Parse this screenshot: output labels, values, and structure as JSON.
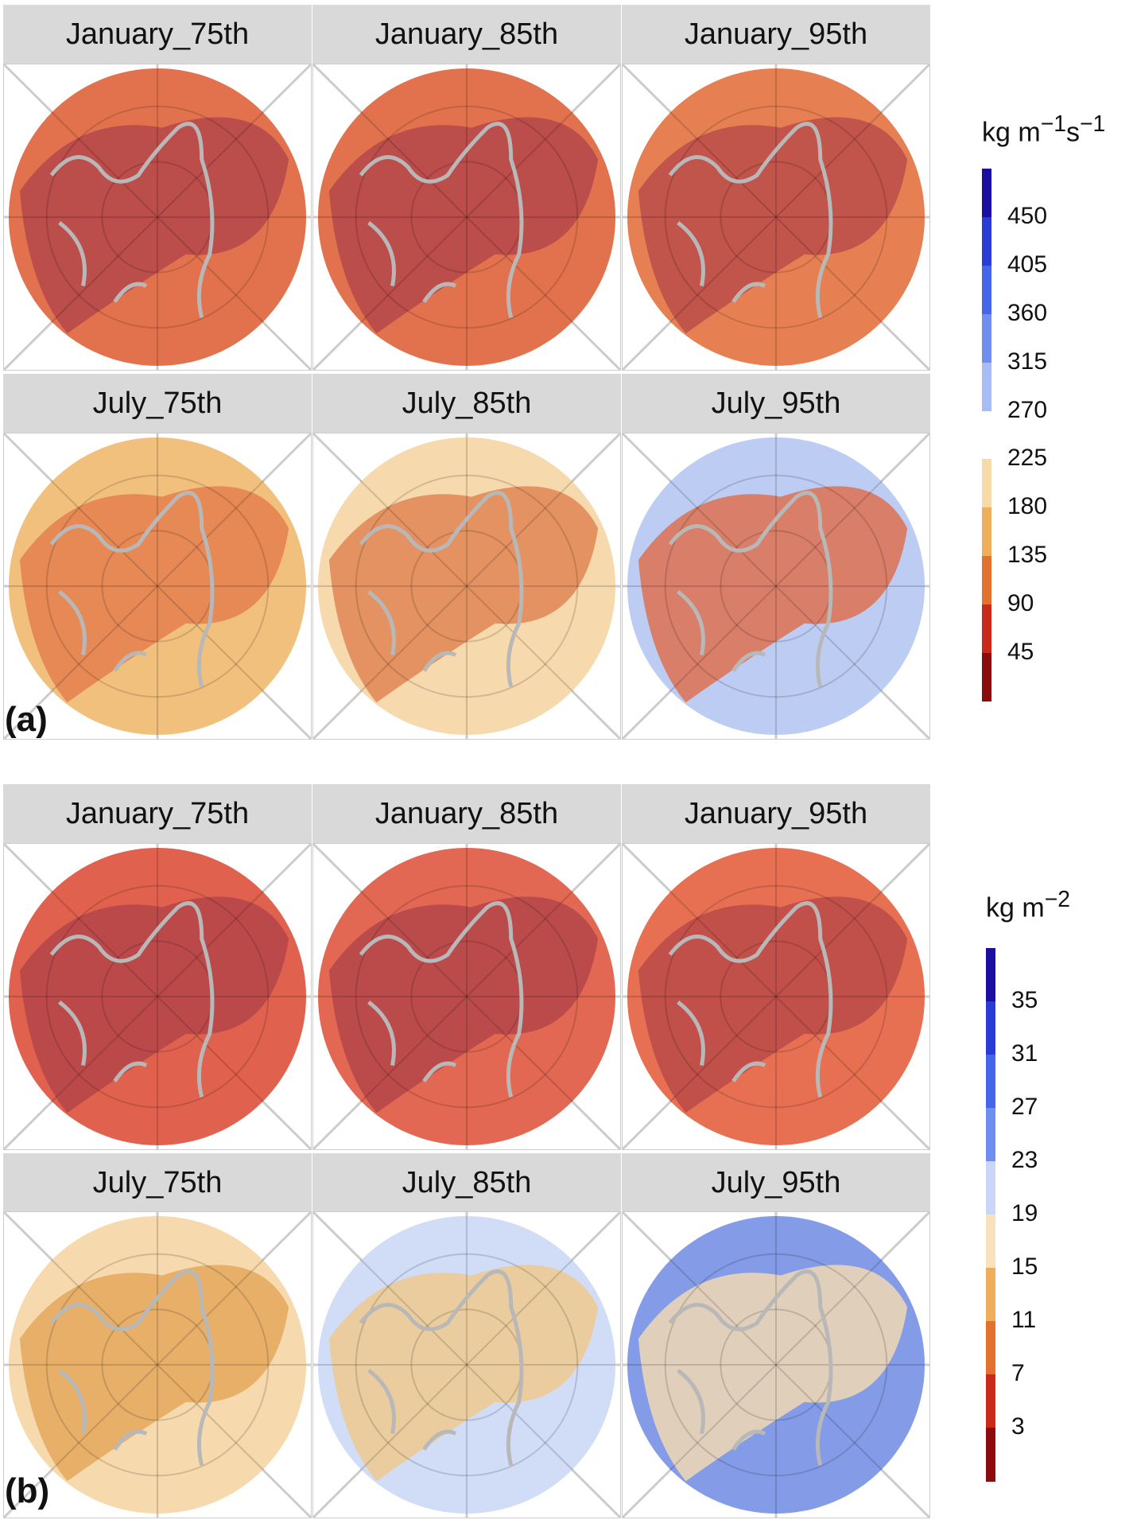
{
  "panel_a": {
    "tag": "(a)",
    "titles": [
      "January_75th",
      "January_85th",
      "January_95th",
      "July_75th",
      "July_85th",
      "July_95th"
    ],
    "legend": {
      "unit_html": "kg m<sup>−1</sup>s<sup>−1</sup>",
      "unit": "kg m−1s−1",
      "labels": [
        "450",
        "405",
        "360",
        "315",
        "270",
        "225",
        "180",
        "135",
        "90",
        "45"
      ],
      "colors": [
        "#1a0f9e",
        "#2b3bd6",
        "#4466e8",
        "#6f8ef0",
        "#a8bdf5",
        "#ffffff",
        "#f6dba8",
        "#eeae5c",
        "#e3722f",
        "#c92a1a",
        "#8a0c0c"
      ]
    }
  },
  "panel_b": {
    "tag": "(b)",
    "titles": [
      "January_75th",
      "January_85th",
      "January_95th",
      "July_75th",
      "July_85th",
      "July_95th"
    ],
    "legend": {
      "unit_html": "kg m<sup>−2</sup>",
      "unit": "kg m−2",
      "labels": [
        "35",
        "31",
        "27",
        "23",
        "19",
        "15",
        "11",
        "7",
        "3"
      ],
      "colors": [
        "#1a0f9e",
        "#2b3bd6",
        "#4466e8",
        "#6f8ef0",
        "#c9d6f7",
        "#f8e2bd",
        "#eeae5c",
        "#e3722f",
        "#c92a1a",
        "#8a0c0c"
      ]
    }
  },
  "map_fills": {
    "a": [
      [
        "#e06a45",
        "#b2444a"
      ],
      [
        "#e06a45",
        "#b2444a"
      ],
      [
        "#e5794a",
        "#b8484a"
      ],
      [
        "#f1bd76",
        "#e27a4b"
      ],
      [
        "#f6d7a8",
        "#e0804f"
      ],
      [
        "#b9c9f2",
        "#e06a45"
      ]
    ],
    "b": [
      [
        "#de5a44",
        "#b2444a"
      ],
      [
        "#e0604a",
        "#b2444a"
      ],
      [
        "#e6684a",
        "#b8484a"
      ],
      [
        "#f6d7a8",
        "#e3a458"
      ],
      [
        "#cfdaf6",
        "#f0c888"
      ],
      [
        "#7d97e6",
        "#f6dcb0"
      ]
    ]
  }
}
